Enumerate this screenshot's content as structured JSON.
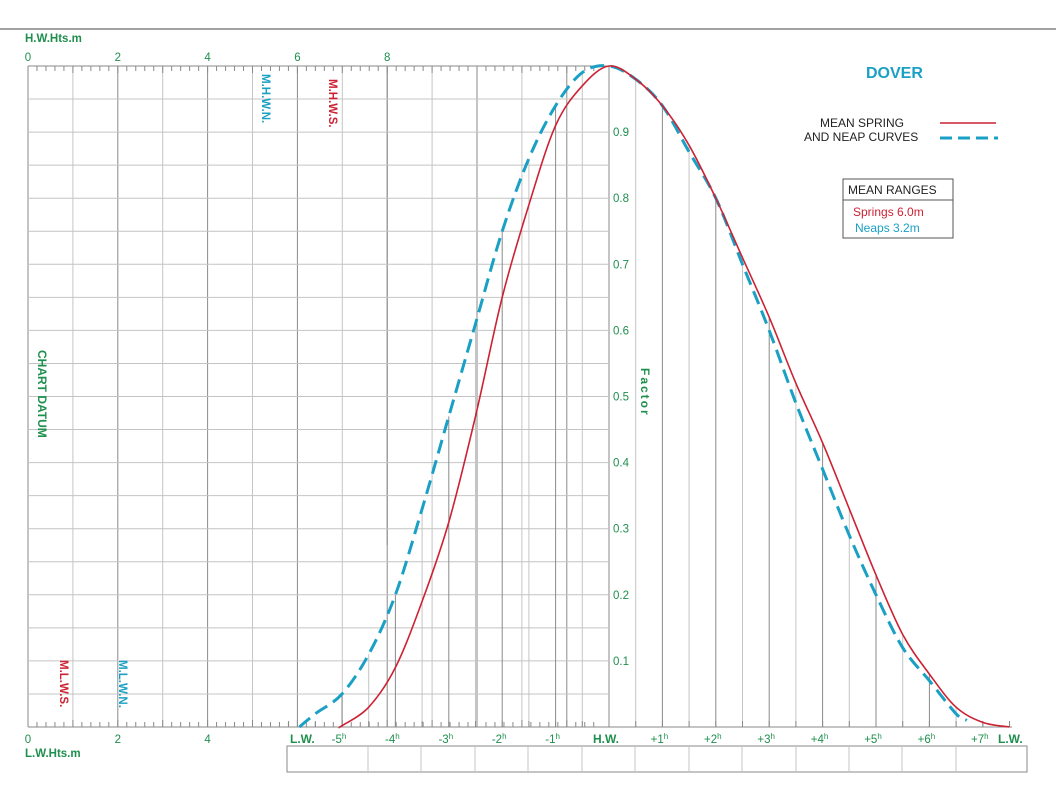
{
  "colors": {
    "green": "#1f8f4e",
    "red": "#cc2233",
    "blue": "#1aa0c4",
    "grid_dark": "#8a8a8a",
    "grid_light": "#c4c4c4",
    "box_border": "#555555"
  },
  "chart_data": {
    "type": "line",
    "title": "DOVER",
    "legend": {
      "line1": "MEAN SPRING",
      "line2": "AND NEAP CURVES",
      "placement": "top-right"
    },
    "mean_ranges": {
      "heading": "MEAN RANGES",
      "springs": "Springs 6.0m",
      "neaps": "Neaps 3.2m"
    },
    "top_axis": {
      "label": "H.W.Hts.m",
      "ticks": [
        "0",
        "2",
        "4",
        "6",
        "8"
      ],
      "range": [
        0,
        8
      ]
    },
    "bottom_axis": {
      "label": "L.W.Hts.m",
      "ticks": [
        "0",
        "2",
        "4"
      ]
    },
    "side_label": "CHART DATUM",
    "factor_label": "Factor",
    "level_labels": {
      "mhwn": "M.H.W.N.",
      "mhws": "M.H.W.S.",
      "mlws": "M.L.W.S.",
      "mlwn": "M.L.W.N."
    },
    "factor_axis": {
      "ticks": [
        "0.1",
        "0.2",
        "0.3",
        "0.4",
        "0.5",
        "0.6",
        "0.7",
        "0.8",
        "0.9"
      ],
      "range": [
        0,
        1
      ]
    },
    "time_axis": {
      "lw_left": "L.W.",
      "lw_right": "L.W.",
      "hw": "H.W.",
      "ticks": [
        {
          "t": -5,
          "label": "-5",
          "sup": "h"
        },
        {
          "t": -4,
          "label": "-4",
          "sup": "h"
        },
        {
          "t": -3,
          "label": "-3",
          "sup": "h"
        },
        {
          "t": -2,
          "label": "-2",
          "sup": "h"
        },
        {
          "t": -1,
          "label": "-1",
          "sup": "h"
        },
        {
          "t": 1,
          "label": "+1",
          "sup": "h"
        },
        {
          "t": 2,
          "label": "+2",
          "sup": "h"
        },
        {
          "t": 3,
          "label": "+3",
          "sup": "h"
        },
        {
          "t": 4,
          "label": "+4",
          "sup": "h"
        },
        {
          "t": 5,
          "label": "+5",
          "sup": "h"
        },
        {
          "t": 6,
          "label": "+6",
          "sup": "h"
        },
        {
          "t": 7,
          "label": "+7",
          "sup": "h"
        }
      ]
    },
    "series": [
      {
        "name": "Springs",
        "style": "solid",
        "points": [
          [
            -5.05,
            0
          ],
          [
            -5,
            0.002
          ],
          [
            -4.5,
            0.03
          ],
          [
            -4,
            0.09
          ],
          [
            -3.5,
            0.19
          ],
          [
            -3,
            0.31
          ],
          [
            -2.5,
            0.47
          ],
          [
            -2,
            0.65
          ],
          [
            -1.5,
            0.79
          ],
          [
            -1,
            0.91
          ],
          [
            -0.5,
            0.97
          ],
          [
            0,
            1.0
          ],
          [
            0.5,
            0.98
          ],
          [
            1,
            0.94
          ],
          [
            1.5,
            0.88
          ],
          [
            2,
            0.8
          ],
          [
            2.5,
            0.71
          ],
          [
            3,
            0.62
          ],
          [
            3.5,
            0.52
          ],
          [
            4,
            0.43
          ],
          [
            4.5,
            0.33
          ],
          [
            5,
            0.23
          ],
          [
            5.5,
            0.14
          ],
          [
            6,
            0.08
          ],
          [
            6.5,
            0.03
          ],
          [
            7,
            0.007
          ],
          [
            7.5,
            0
          ]
        ]
      },
      {
        "name": "Neaps",
        "style": "dashed",
        "points": [
          [
            -5.8,
            0
          ],
          [
            -5.5,
            0.02
          ],
          [
            -5,
            0.05
          ],
          [
            -4.5,
            0.11
          ],
          [
            -4,
            0.2
          ],
          [
            -3.5,
            0.33
          ],
          [
            -3,
            0.47
          ],
          [
            -2.5,
            0.61
          ],
          [
            -2,
            0.75
          ],
          [
            -1.5,
            0.86
          ],
          [
            -1,
            0.94
          ],
          [
            -0.5,
            0.99
          ],
          [
            0,
            1.0
          ],
          [
            0.5,
            0.98
          ],
          [
            1,
            0.94
          ],
          [
            1.5,
            0.87
          ],
          [
            2,
            0.8
          ],
          [
            2.5,
            0.7
          ],
          [
            3,
            0.6
          ],
          [
            3.5,
            0.49
          ],
          [
            4,
            0.39
          ],
          [
            4.5,
            0.29
          ],
          [
            5,
            0.2
          ],
          [
            5.5,
            0.12
          ],
          [
            6,
            0.07
          ],
          [
            6.5,
            0.02
          ],
          [
            6.7,
            0.01
          ]
        ]
      }
    ]
  }
}
